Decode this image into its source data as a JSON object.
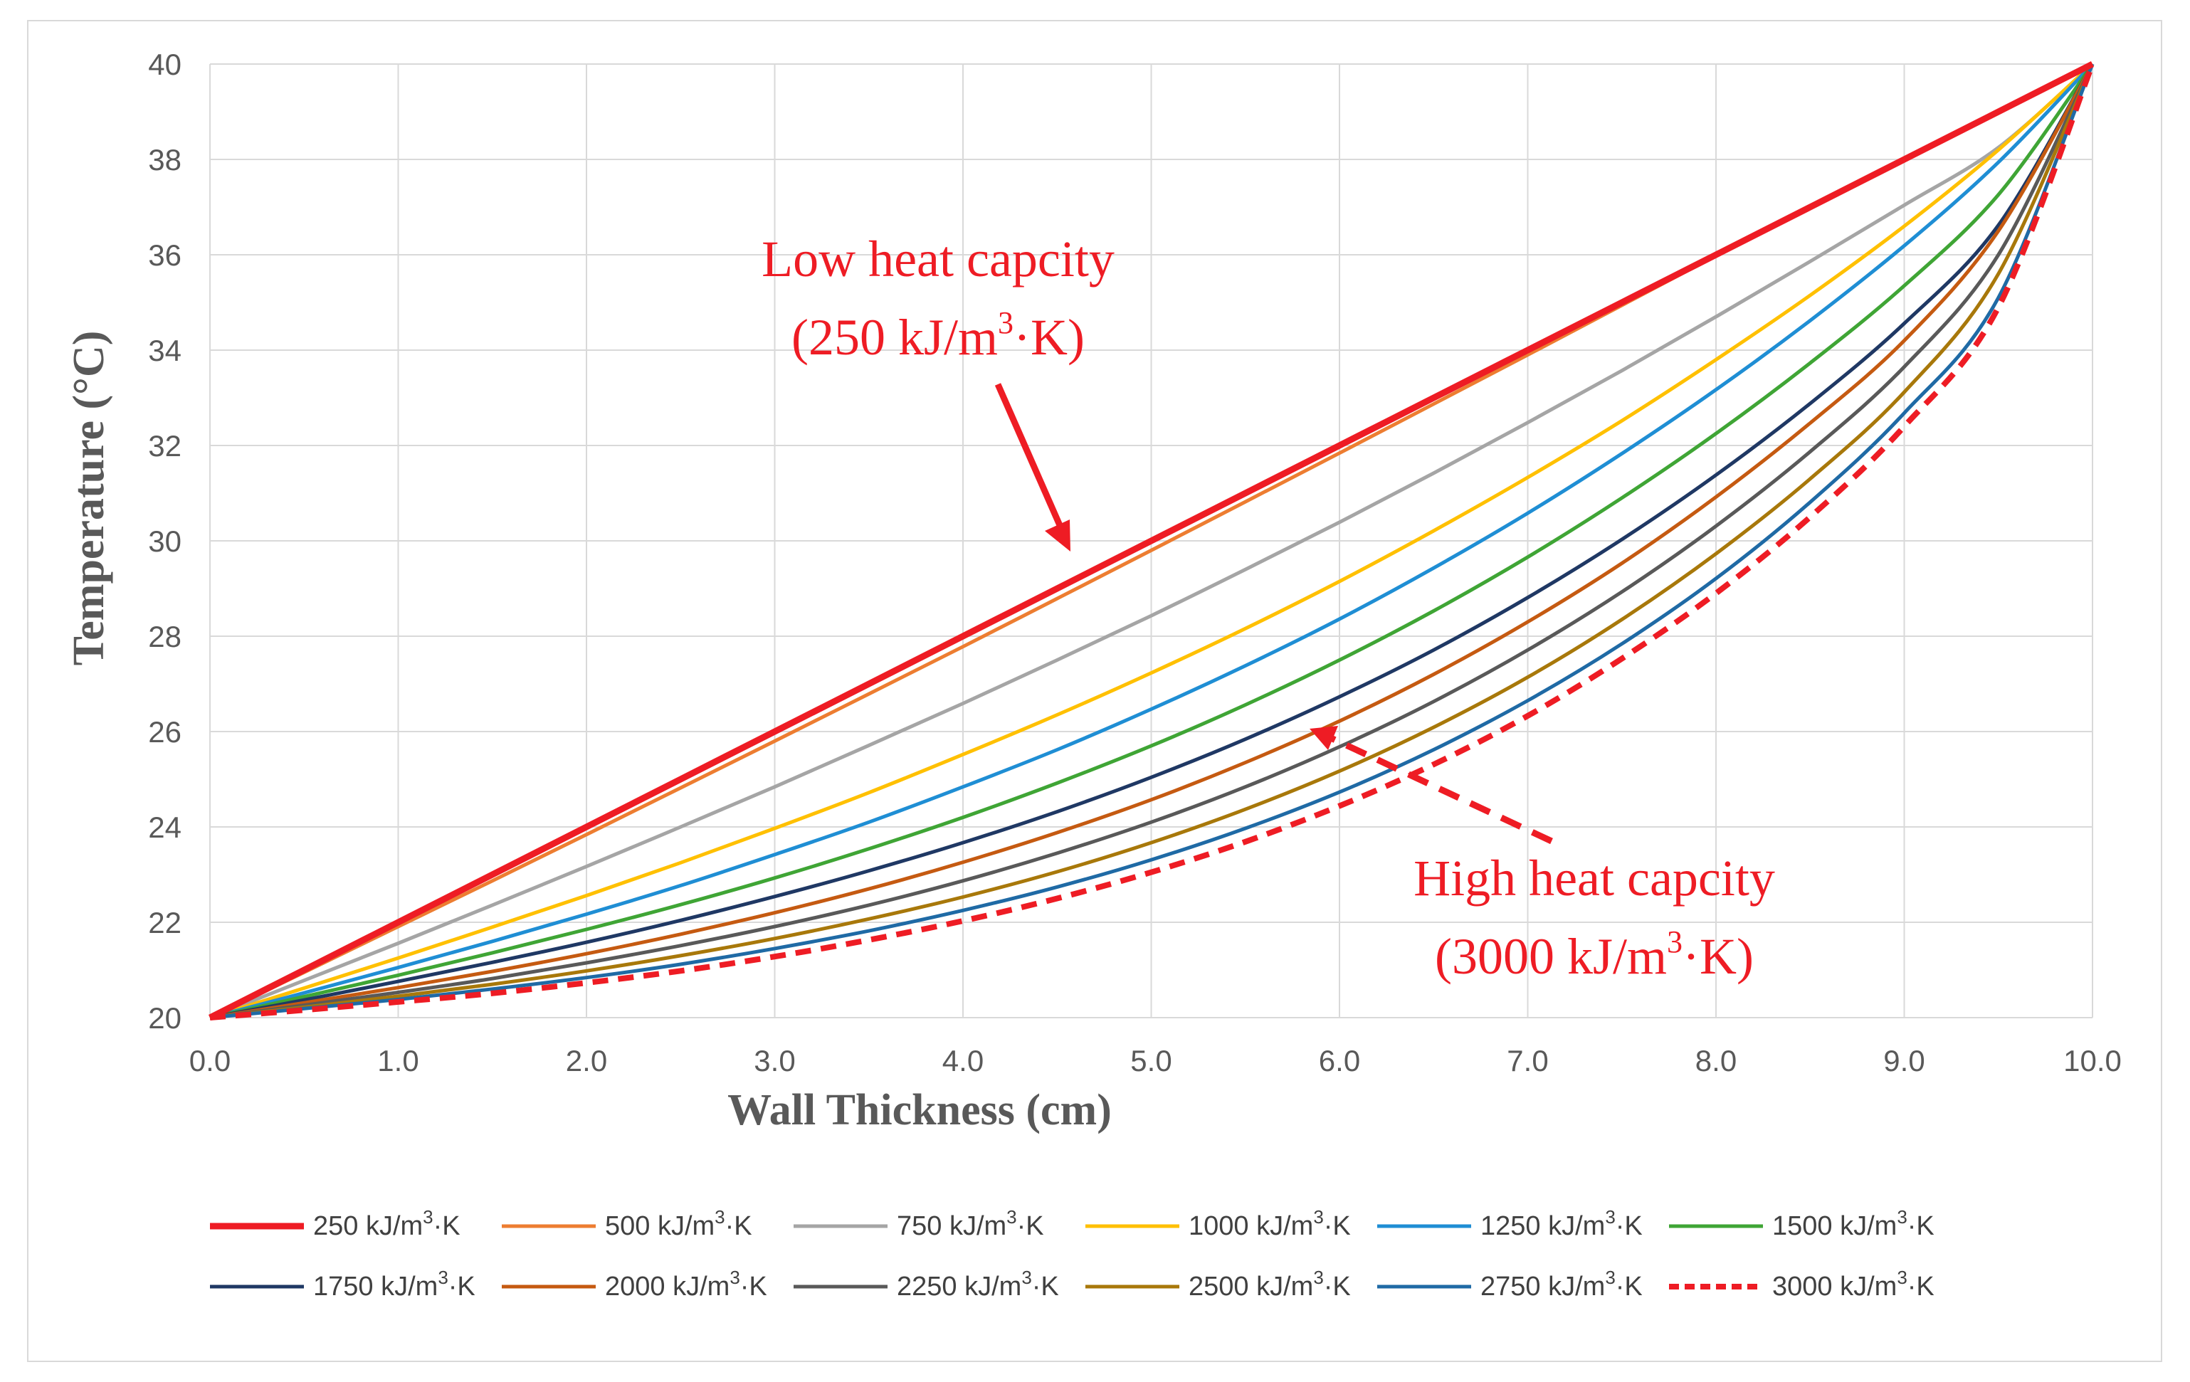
{
  "chart_data": {
    "type": "line",
    "title": "",
    "xlabel": "Wall Thickness (cm)",
    "ylabel": "Temperature (°C)",
    "xlim": [
      0,
      10
    ],
    "ylim": [
      20,
      40
    ],
    "grid": true,
    "legend_position": "bottom",
    "x_ticks": [
      "0.0",
      "1.0",
      "2.0",
      "3.0",
      "4.0",
      "5.0",
      "6.0",
      "7.0",
      "8.0",
      "9.0",
      "10.0"
    ],
    "y_ticks": [
      "20",
      "22",
      "24",
      "26",
      "28",
      "30",
      "32",
      "34",
      "36",
      "38",
      "40"
    ],
    "x": [
      0,
      0.5,
      1,
      1.5,
      2,
      2.5,
      3,
      3.5,
      4,
      4.5,
      5,
      5.5,
      6,
      6.5,
      7,
      7.5,
      8,
      8.5,
      9,
      9.5,
      10
    ],
    "series": [
      {
        "name": "250",
        "unit": "kJ/m3·K",
        "color": "#ee1c24",
        "width": 9,
        "dash": "",
        "values": [
          20,
          21,
          22,
          23,
          24,
          25,
          26,
          27,
          28,
          29,
          30,
          31,
          32,
          33,
          34,
          35,
          36,
          37,
          38,
          39,
          40
        ]
      },
      {
        "name": "500",
        "unit": "kJ/m3·K",
        "color": "#ed7d31",
        "width": 5,
        "dash": "",
        "values": [
          20,
          20.95,
          21.91,
          22.87,
          23.84,
          24.82,
          25.8,
          26.79,
          27.78,
          28.79,
          29.8,
          30.82,
          31.84,
          32.87,
          33.9,
          34.94,
          35.98,
          37.01,
          38.02,
          39.02,
          40
        ]
      },
      {
        "name": "750",
        "unit": "kJ/m3·K",
        "color": "#a5a5a5",
        "width": 5,
        "dash": "",
        "values": [
          20,
          20.78,
          21.56,
          22.36,
          23.17,
          24.0,
          24.84,
          25.71,
          26.59,
          27.5,
          28.43,
          29.4,
          30.39,
          31.42,
          32.48,
          33.57,
          34.7,
          35.86,
          37.04,
          38.25,
          40
        ]
      },
      {
        "name": "1000",
        "unit": "kJ/m3·K",
        "color": "#ffc000",
        "width": 5,
        "dash": "",
        "values": [
          20,
          20.62,
          21.25,
          21.9,
          22.56,
          23.25,
          23.97,
          24.72,
          25.52,
          26.35,
          27.23,
          28.16,
          29.15,
          30.21,
          31.33,
          32.52,
          33.8,
          35.15,
          36.6,
          38.2,
          40
        ]
      },
      {
        "name": "1250",
        "unit": "kJ/m3·K",
        "color": "#1f8ed4",
        "width": 5,
        "dash": "",
        "values": [
          20,
          20.52,
          21.05,
          21.6,
          22.17,
          22.77,
          23.42,
          24.1,
          24.84,
          25.62,
          26.47,
          27.38,
          28.36,
          29.43,
          30.58,
          31.83,
          33.17,
          34.62,
          36.19,
          37.94,
          40
        ]
      },
      {
        "name": "1500",
        "unit": "kJ/m3·K",
        "color": "#3fa535",
        "width": 5,
        "dash": "",
        "values": [
          20,
          20.44,
          20.89,
          21.36,
          21.85,
          22.37,
          22.93,
          23.54,
          24.2,
          24.92,
          25.7,
          26.56,
          27.5,
          28.53,
          29.66,
          30.9,
          32.25,
          33.73,
          35.35,
          37.26,
          40
        ]
      },
      {
        "name": "1750",
        "unit": "kJ/m3·K",
        "color": "#1f3864",
        "width": 5,
        "dash": "",
        "values": [
          20,
          20.37,
          20.76,
          21.16,
          21.58,
          22.04,
          22.54,
          23.08,
          23.67,
          24.32,
          25.04,
          25.84,
          26.73,
          27.71,
          28.81,
          30.03,
          31.38,
          32.88,
          34.56,
          36.62,
          40
        ]
      },
      {
        "name": "2000",
        "unit": "kJ/m3·K",
        "color": "#c55a11",
        "width": 5,
        "dash": "",
        "values": [
          20,
          20.31,
          20.63,
          20.97,
          21.34,
          21.75,
          22.2,
          22.7,
          23.26,
          23.88,
          24.57,
          25.35,
          26.22,
          27.2,
          28.3,
          29.53,
          30.92,
          32.47,
          34.2,
          36.5,
          40
        ]
      },
      {
        "name": "2250",
        "unit": "kJ/m3·K",
        "color": "#595959",
        "width": 5,
        "dash": "",
        "values": [
          20,
          20.26,
          20.53,
          20.82,
          21.15,
          21.51,
          21.91,
          22.36,
          22.87,
          23.45,
          24.1,
          24.84,
          25.68,
          26.63,
          27.71,
          28.93,
          30.31,
          31.87,
          33.65,
          36.0,
          40
        ]
      },
      {
        "name": "2500",
        "unit": "kJ/m3·K",
        "color": "#a8780a",
        "width": 5,
        "dash": "",
        "values": [
          20,
          20.22,
          20.45,
          20.7,
          20.98,
          21.3,
          21.66,
          22.07,
          22.53,
          23.06,
          23.67,
          24.37,
          25.17,
          26.09,
          27.14,
          28.35,
          29.73,
          31.3,
          33.12,
          35.6,
          40
        ]
      },
      {
        "name": "2750",
        "unit": "kJ/m3·K",
        "color": "#1f6aa5",
        "width": 5,
        "dash": "",
        "values": [
          20,
          20.19,
          20.38,
          20.6,
          20.84,
          21.12,
          21.45,
          21.82,
          22.25,
          22.74,
          23.31,
          23.97,
          24.73,
          25.62,
          26.65,
          27.84,
          29.21,
          30.81,
          32.68,
          35.1,
          40
        ]
      },
      {
        "name": "3000",
        "unit": "kJ/m3·K",
        "color": "#ee1c24",
        "width": 8,
        "dash": "22,14",
        "values": [
          20,
          20.16,
          20.33,
          20.51,
          20.73,
          20.98,
          21.28,
          21.63,
          22.03,
          22.5,
          23.05,
          23.69,
          24.44,
          25.31,
          26.33,
          27.53,
          28.9,
          30.5,
          32.4,
          34.9,
          40
        ]
      }
    ],
    "annotations": [
      {
        "line1": "Low heat capcity",
        "line2_pre": "(250 kJ/m",
        "sup": "3",
        "line2_post": "·K)"
      },
      {
        "line1": "High heat capcity",
        "line2_pre": "(3000 kJ/m",
        "sup": "3",
        "line2_post": "·K)"
      }
    ]
  }
}
